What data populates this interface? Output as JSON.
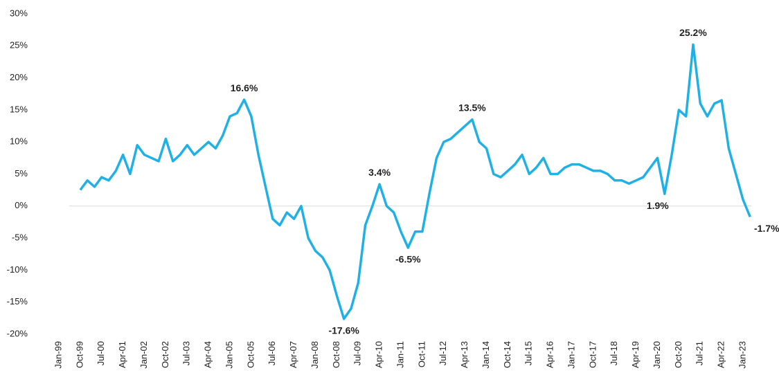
{
  "chart_data": {
    "type": "line",
    "categories": [
      "Jan-99",
      null,
      null,
      "Oct-99",
      null,
      null,
      "Jul-00",
      null,
      null,
      "Apr-01",
      null,
      null,
      "Jan-02",
      null,
      null,
      "Oct-02",
      null,
      null,
      "Jul-03",
      null,
      null,
      "Apr-04",
      null,
      null,
      "Jan-05",
      null,
      null,
      "Oct-05",
      null,
      null,
      "Jul-06",
      null,
      null,
      "Apr-07",
      null,
      null,
      "Jan-08",
      null,
      null,
      "Oct-08",
      null,
      null,
      "Jul-09",
      null,
      null,
      "Apr-10",
      null,
      null,
      "Jan-11",
      null,
      null,
      "Oct-11",
      null,
      null,
      "Jul-12",
      null,
      null,
      "Apr-13",
      null,
      null,
      "Jan-14",
      null,
      null,
      "Oct-14",
      null,
      null,
      "Jul-15",
      null,
      null,
      "Apr-16",
      null,
      null,
      "Jan-17",
      null,
      null,
      "Oct-17",
      null,
      null,
      "Jul-18",
      null,
      null,
      "Apr-19",
      null,
      null,
      "Jan-20",
      null,
      null,
      "Oct-20",
      null,
      null,
      "Jul-21",
      null,
      null,
      "Apr-22",
      null,
      null,
      "Jan-23",
      null
    ],
    "series": [
      {
        "color": "#1fb1e6",
        "values": [
          null,
          null,
          null,
          2.5,
          4,
          3,
          4.5,
          4,
          5.5,
          8,
          5,
          9.5,
          8,
          7.5,
          7,
          10.5,
          7,
          8,
          9.5,
          8,
          9,
          10,
          9,
          11,
          14,
          14.5,
          16.6,
          14,
          8,
          3,
          -2,
          -3,
          -1,
          -2,
          0,
          -5,
          -7,
          -8,
          -10,
          -14,
          -17.6,
          -16,
          -12,
          -3,
          0,
          3.4,
          0,
          -1,
          -4,
          -6.5,
          -4,
          -4,
          2,
          7.5,
          10,
          10.5,
          11.5,
          12.5,
          13.5,
          10,
          9,
          5,
          4.5,
          5.5,
          6.5,
          8,
          5,
          6,
          7.5,
          5,
          5,
          6,
          6.5,
          6.5,
          6,
          5.5,
          5.5,
          5,
          4,
          4,
          3.5,
          4,
          4.5,
          6,
          7.5,
          1.9,
          8,
          15,
          14,
          25.2,
          16,
          14,
          16,
          16.5,
          9,
          5,
          1,
          -1.7
        ],
        "value_labels": [
          null,
          null,
          null,
          null,
          null,
          null,
          null,
          null,
          null,
          null,
          null,
          null,
          null,
          null,
          null,
          null,
          null,
          null,
          null,
          null,
          null,
          null,
          null,
          null,
          null,
          null,
          "16.6%",
          null,
          null,
          null,
          null,
          null,
          null,
          null,
          null,
          null,
          null,
          null,
          null,
          null,
          "-17.6%",
          null,
          null,
          null,
          null,
          "3.4%",
          null,
          null,
          null,
          "-6.5%",
          null,
          null,
          null,
          null,
          null,
          null,
          null,
          null,
          "13.5%",
          null,
          null,
          null,
          null,
          null,
          null,
          null,
          null,
          null,
          null,
          null,
          null,
          null,
          null,
          null,
          null,
          null,
          null,
          null,
          null,
          null,
          null,
          null,
          null,
          null,
          null,
          "1.9%",
          null,
          null,
          null,
          "25.2%",
          null,
          null,
          null,
          null,
          null,
          null,
          null,
          "-1.7%"
        ]
      }
    ],
    "ylim": [
      -20,
      30
    ],
    "yticks": [
      {
        "value": -20,
        "label": "-20%"
      },
      {
        "value": -15,
        "label": "-15%"
      },
      {
        "value": -10,
        "label": "-10%"
      },
      {
        "value": -5,
        "label": "-5%"
      },
      {
        "value": 0,
        "label": "0%"
      },
      {
        "value": 5,
        "label": "5%"
      },
      {
        "value": 10,
        "label": "10%"
      },
      {
        "value": 15,
        "label": "15%"
      },
      {
        "value": 20,
        "label": "20%"
      },
      {
        "value": 25,
        "label": "25%"
      },
      {
        "value": 30,
        "label": "30%"
      }
    ],
    "grid": false
  }
}
